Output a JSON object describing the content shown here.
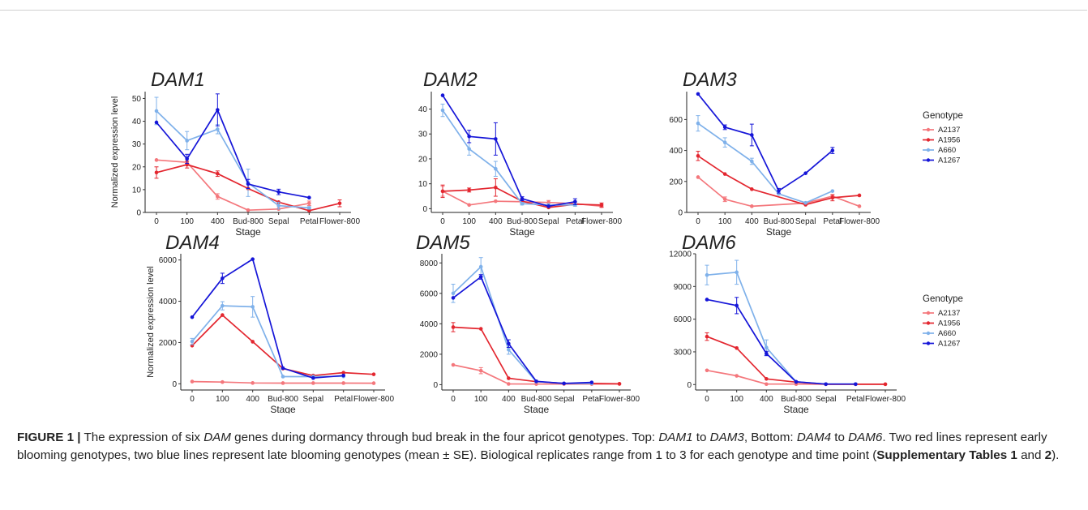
{
  "stages": [
    "0",
    "100",
    "400",
    "Bud-800",
    "Sepal",
    "Petal",
    "Flower-800"
  ],
  "xlabel": "Stage",
  "ylabel": "Normalized expression level",
  "legend": {
    "title": "Genotype",
    "items": [
      {
        "name": "A2137",
        "color": "#f4777c"
      },
      {
        "name": "A1956",
        "color": "#e3262f"
      },
      {
        "name": "A660",
        "color": "#7fb1ea"
      },
      {
        "name": "A1267",
        "color": "#1515d8"
      }
    ]
  },
  "colors": {
    "A2137": "#f4777c",
    "A1956": "#e3262f",
    "A660": "#7fb1ea",
    "A1267": "#1515d8"
  },
  "caption": {
    "label": "FIGURE 1 |",
    "t1": " The expression of six ",
    "i1": "DAM",
    "t2": " genes during dormancy through bud break in the four apricot genotypes. Top: ",
    "i2": "DAM1",
    "t3": " to ",
    "i3": "DAM3",
    "t4": ", Bottom: ",
    "i4": "DAM4",
    "t5": " to ",
    "i5": "DAM6",
    "t6": ". Two red lines represent early blooming genotypes, two blue lines represent late blooming genotypes (mean ± SE). Biological replicates range from 1 to 3 for each genotype and time point (",
    "b1": "Supplementary Tables 1",
    "t7": " and ",
    "b2": "2",
    "t8": ")."
  },
  "chart_data": [
    {
      "type": "line",
      "title": "DAM1",
      "ylim": [
        0,
        53
      ],
      "yticks": [
        0,
        10,
        20,
        30,
        40,
        50
      ],
      "series": [
        {
          "name": "A2137",
          "points": [
            [
              0,
              23
            ],
            [
              100,
              22
            ],
            [
              400,
              7
            ],
            [
              3,
              1
            ],
            [
              4,
              1.5
            ],
            [
              5,
              4
            ]
          ],
          "err": [
            0,
            0,
            1.2,
            0,
            0,
            1
          ]
        },
        {
          "name": "A1956",
          "points": [
            [
              0,
              17.5
            ],
            [
              100,
              21
            ],
            [
              400,
              17
            ],
            [
              3,
              10.5
            ],
            [
              4,
              4.5
            ],
            [
              5,
              0.8
            ],
            [
              6,
              4
            ]
          ],
          "err": [
            2.5,
            1.5,
            1.2,
            0,
            0,
            0,
            1.5
          ]
        },
        {
          "name": "A660",
          "points": [
            [
              0,
              44.5
            ],
            [
              100,
              31.5
            ],
            [
              400,
              36.5
            ],
            [
              3,
              13
            ],
            [
              4,
              3
            ],
            [
              5,
              2
            ]
          ],
          "err": [
            6,
            4,
            2,
            6,
            1.5,
            0.5
          ]
        },
        {
          "name": "A1267",
          "points": [
            [
              0,
              39.5
            ],
            [
              100,
              23.5
            ],
            [
              400,
              45
            ],
            [
              3,
              12.5
            ],
            [
              4,
              9
            ],
            [
              5,
              6.5
            ]
          ],
          "err": [
            0,
            2,
            7,
            2,
            1.2,
            0
          ]
        }
      ]
    },
    {
      "type": "line",
      "title": "DAM2",
      "ylim": [
        -1.5,
        47
      ],
      "yticks": [
        0,
        10,
        20,
        30,
        40
      ],
      "series": [
        {
          "name": "A2137",
          "points": [
            [
              0,
              7
            ],
            [
              100,
              1.5
            ],
            [
              400,
              3
            ],
            [
              3,
              2.8
            ],
            [
              4,
              2.5
            ],
            [
              5,
              2
            ],
            [
              6,
              1
            ]
          ],
          "err": [
            2,
            0,
            0,
            0,
            0.8,
            0,
            0.5
          ]
        },
        {
          "name": "A1956",
          "points": [
            [
              0,
              7
            ],
            [
              100,
              7.5
            ],
            [
              400,
              8.5
            ],
            [
              3,
              3
            ],
            [
              4,
              0.5
            ],
            [
              5,
              1.8
            ],
            [
              6,
              1.5
            ]
          ],
          "err": [
            2.5,
            0.8,
            3.5,
            0.8,
            0,
            0,
            0.8
          ]
        },
        {
          "name": "A660",
          "points": [
            [
              0,
              39.5
            ],
            [
              100,
              24
            ],
            [
              400,
              16
            ],
            [
              3,
              2
            ],
            [
              4,
              1.5
            ],
            [
              5,
              1.5
            ]
          ],
          "err": [
            2.5,
            2.5,
            3,
            0.5,
            0,
            0.5
          ]
        },
        {
          "name": "A1267",
          "points": [
            [
              0,
              45.5
            ],
            [
              100,
              29
            ],
            [
              400,
              28
            ],
            [
              3,
              4
            ],
            [
              4,
              1
            ],
            [
              5,
              2.8
            ]
          ],
          "err": [
            0,
            2.5,
            6.5,
            0.8,
            0,
            1.2
          ]
        }
      ]
    },
    {
      "type": "line",
      "title": "DAM3",
      "ylim": [
        0,
        780
      ],
      "yticks": [
        0,
        200,
        400,
        600
      ],
      "series": [
        {
          "name": "A2137",
          "points": [
            [
              0,
              228
            ],
            [
              100,
              85
            ],
            [
              400,
              40
            ],
            [
              4,
              60
            ],
            [
              5,
              105
            ],
            [
              6,
              40
            ]
          ],
          "err": [
            0,
            15,
            0,
            0,
            0,
            0
          ]
        },
        {
          "name": "A1956",
          "points": [
            [
              0,
              365
            ],
            [
              100,
              248
            ],
            [
              400,
              150
            ],
            [
              4,
              50
            ],
            [
              5,
              95
            ],
            [
              6,
              110
            ]
          ],
          "err": [
            30,
            0,
            0,
            0,
            20,
            0
          ]
        },
        {
          "name": "A660",
          "points": [
            [
              0,
              575
            ],
            [
              100,
              452
            ],
            [
              400,
              330
            ],
            [
              3,
              120
            ],
            [
              4,
              62
            ],
            [
              5,
              138
            ]
          ],
          "err": [
            50,
            30,
            20,
            0,
            0,
            0
          ]
        },
        {
          "name": "A1267",
          "points": [
            [
              0,
              765
            ],
            [
              100,
              550
            ],
            [
              400,
              500
            ],
            [
              3,
              140
            ],
            [
              4,
              253
            ],
            [
              5,
              400
            ]
          ],
          "err": [
            0,
            15,
            70,
            15,
            0,
            20
          ]
        }
      ]
    },
    {
      "type": "line",
      "title": "DAM4",
      "ylim": [
        -300,
        6300
      ],
      "yticks": [
        0,
        2000,
        4000,
        6000
      ],
      "series": [
        {
          "name": "A2137",
          "points": [
            [
              0,
              110
            ],
            [
              100,
              85
            ],
            [
              400,
              40
            ],
            [
              3,
              35
            ],
            [
              4,
              35
            ],
            [
              5,
              35
            ],
            [
              6,
              30
            ]
          ],
          "err": [
            0,
            0,
            0,
            0,
            0,
            0,
            0
          ]
        },
        {
          "name": "A1956",
          "points": [
            [
              0,
              1850
            ],
            [
              100,
              3330
            ],
            [
              400,
              2040
            ],
            [
              3,
              740
            ],
            [
              4,
              400
            ],
            [
              5,
              540
            ],
            [
              6,
              460
            ]
          ],
          "err": [
            0,
            0,
            0,
            0,
            0,
            0,
            0
          ]
        },
        {
          "name": "A660",
          "points": [
            [
              0,
              2050
            ],
            [
              100,
              3780
            ],
            [
              400,
              3730
            ],
            [
              3,
              350
            ],
            [
              4,
              350
            ],
            [
              5,
              360
            ]
          ],
          "err": [
            150,
            200,
            500,
            0,
            0,
            0
          ]
        },
        {
          "name": "A1267",
          "points": [
            [
              0,
              3230
            ],
            [
              100,
              5110
            ],
            [
              400,
              6040
            ],
            [
              3,
              760
            ],
            [
              4,
              280
            ],
            [
              5,
              400
            ]
          ],
          "err": [
            0,
            250,
            0,
            0,
            0,
            0
          ]
        }
      ]
    },
    {
      "type": "line",
      "title": "DAM5",
      "ylim": [
        -350,
        8600
      ],
      "yticks": [
        0,
        2000,
        4000,
        6000,
        8000
      ],
      "series": [
        {
          "name": "A2137",
          "points": [
            [
              0,
              1300
            ],
            [
              100,
              920
            ],
            [
              400,
              50
            ],
            [
              3,
              40
            ],
            [
              4,
              40
            ],
            [
              5,
              40
            ],
            [
              6,
              40
            ]
          ],
          "err": [
            0,
            200,
            0,
            0,
            0,
            0,
            0
          ]
        },
        {
          "name": "A1956",
          "points": [
            [
              0,
              3780
            ],
            [
              100,
              3670
            ],
            [
              400,
              420
            ],
            [
              3,
              200
            ],
            [
              4,
              80
            ],
            [
              5,
              80
            ],
            [
              6,
              60
            ]
          ],
          "err": [
            300,
            0,
            0,
            0,
            0,
            0,
            0
          ]
        },
        {
          "name": "A660",
          "points": [
            [
              0,
              6000
            ],
            [
              100,
              7750
            ],
            [
              400,
              2300
            ],
            [
              3,
              200
            ],
            [
              4,
              80
            ],
            [
              5,
              80
            ]
          ],
          "err": [
            600,
            600,
            300,
            0,
            0,
            0
          ]
        },
        {
          "name": "A1267",
          "points": [
            [
              0,
              5700
            ],
            [
              100,
              7080
            ],
            [
              400,
              2700
            ],
            [
              3,
              220
            ],
            [
              4,
              80
            ],
            [
              5,
              150
            ]
          ],
          "err": [
            0,
            150,
            250,
            0,
            0,
            0
          ]
        }
      ]
    },
    {
      "type": "line",
      "title": "DAM6",
      "ylim": [
        -500,
        12000
      ],
      "yticks": [
        0,
        3000,
        6000,
        9000,
        12000
      ],
      "series": [
        {
          "name": "A2137",
          "points": [
            [
              0,
              1300
            ],
            [
              100,
              800
            ],
            [
              400,
              40
            ],
            [
              3,
              40
            ],
            [
              4,
              30
            ],
            [
              5,
              30
            ],
            [
              6,
              30
            ]
          ],
          "err": [
            0,
            0,
            0,
            0,
            0,
            0,
            0
          ]
        },
        {
          "name": "A1956",
          "points": [
            [
              0,
              4400
            ],
            [
              100,
              3350
            ],
            [
              400,
              520
            ],
            [
              3,
              220
            ],
            [
              4,
              30
            ],
            [
              5,
              30
            ],
            [
              6,
              30
            ]
          ],
          "err": [
            350,
            0,
            0,
            0,
            0,
            0,
            0
          ]
        },
        {
          "name": "A660",
          "points": [
            [
              0,
              10050
            ],
            [
              100,
              10300
            ],
            [
              400,
              3400
            ],
            [
              3,
              250
            ],
            [
              4,
              40
            ],
            [
              5,
              40
            ]
          ],
          "err": [
            900,
            1100,
            700,
            0,
            0,
            0
          ]
        },
        {
          "name": "A1267",
          "points": [
            [
              0,
              7800
            ],
            [
              100,
              7250
            ],
            [
              400,
              2850
            ],
            [
              3,
              250
            ],
            [
              4,
              40
            ],
            [
              5,
              40
            ]
          ],
          "err": [
            0,
            750,
            200,
            0,
            0,
            0
          ]
        }
      ]
    }
  ]
}
